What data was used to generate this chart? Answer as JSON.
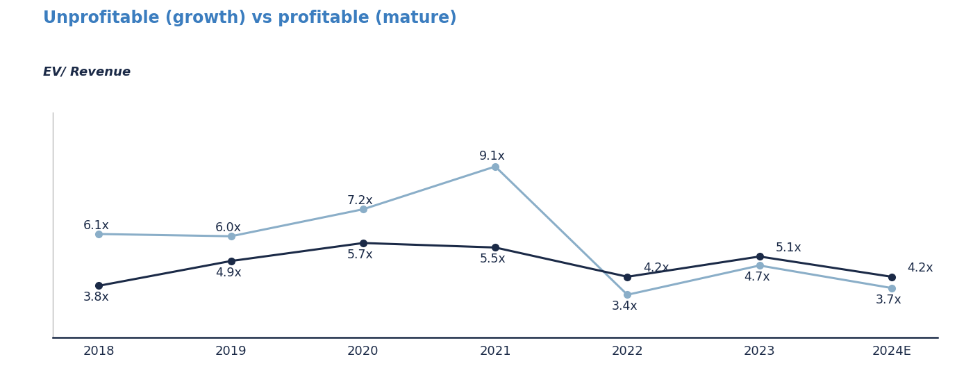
{
  "title": "Unprofitable (growth) vs profitable (mature)",
  "ylabel": "EV/ Revenue",
  "years": [
    "2018",
    "2019",
    "2020",
    "2021",
    "2022",
    "2023",
    "2024E"
  ],
  "unprofitable": [
    6.1,
    6.0,
    7.2,
    9.1,
    3.4,
    4.7,
    3.7
  ],
  "profitable": [
    3.8,
    4.9,
    5.7,
    5.5,
    4.2,
    5.1,
    4.2
  ],
  "unprofitable_color": "#8AAEC8",
  "profitable_color": "#1B2A47",
  "title_color": "#3B7DBF",
  "ylabel_color": "#1B2A47",
  "background_color": "#FFFFFF",
  "ylim": [
    1.5,
    11.5
  ],
  "label_fontsize": 12.5,
  "tick_fontsize": 13,
  "title_fontsize": 17,
  "ylabel_fontsize": 13,
  "linewidth": 2.2,
  "markersize": 7,
  "unprof_label_xoff": [
    -0.12,
    -0.12,
    -0.12,
    -0.12,
    -0.12,
    -0.12,
    -0.12
  ],
  "unprof_label_yoff": [
    0.38,
    0.38,
    0.38,
    0.45,
    -0.52,
    -0.52,
    -0.52
  ],
  "unprof_label_ha": [
    "left",
    "left",
    "left",
    "left",
    "left",
    "left",
    "left"
  ],
  "prof_label_xoff": [
    -0.12,
    -0.12,
    -0.12,
    -0.12,
    0.12,
    0.12,
    0.12
  ],
  "prof_label_yoff": [
    -0.52,
    -0.52,
    -0.52,
    -0.52,
    0.38,
    0.38,
    0.38
  ],
  "prof_label_ha": [
    "left",
    "left",
    "left",
    "left",
    "left",
    "left",
    "left"
  ]
}
